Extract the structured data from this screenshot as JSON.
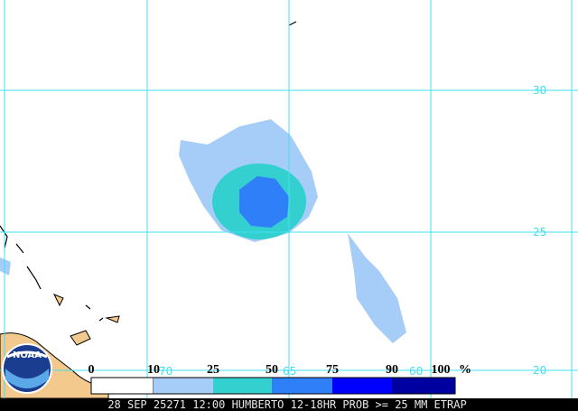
{
  "map": {
    "latitude_labels": [
      "30",
      "25",
      "20"
    ],
    "longitude_labels": [
      "70",
      "65",
      "60"
    ],
    "logo": "NOAA",
    "colorbar": {
      "labels": [
        "0",
        "10",
        "25",
        "50",
        "75",
        "90",
        "100"
      ],
      "unit": "%"
    },
    "footer": "28 SEP 25271 12:00 HUMBERTO 12-18HR PROB >= 25 MM ETRAP"
  }
}
